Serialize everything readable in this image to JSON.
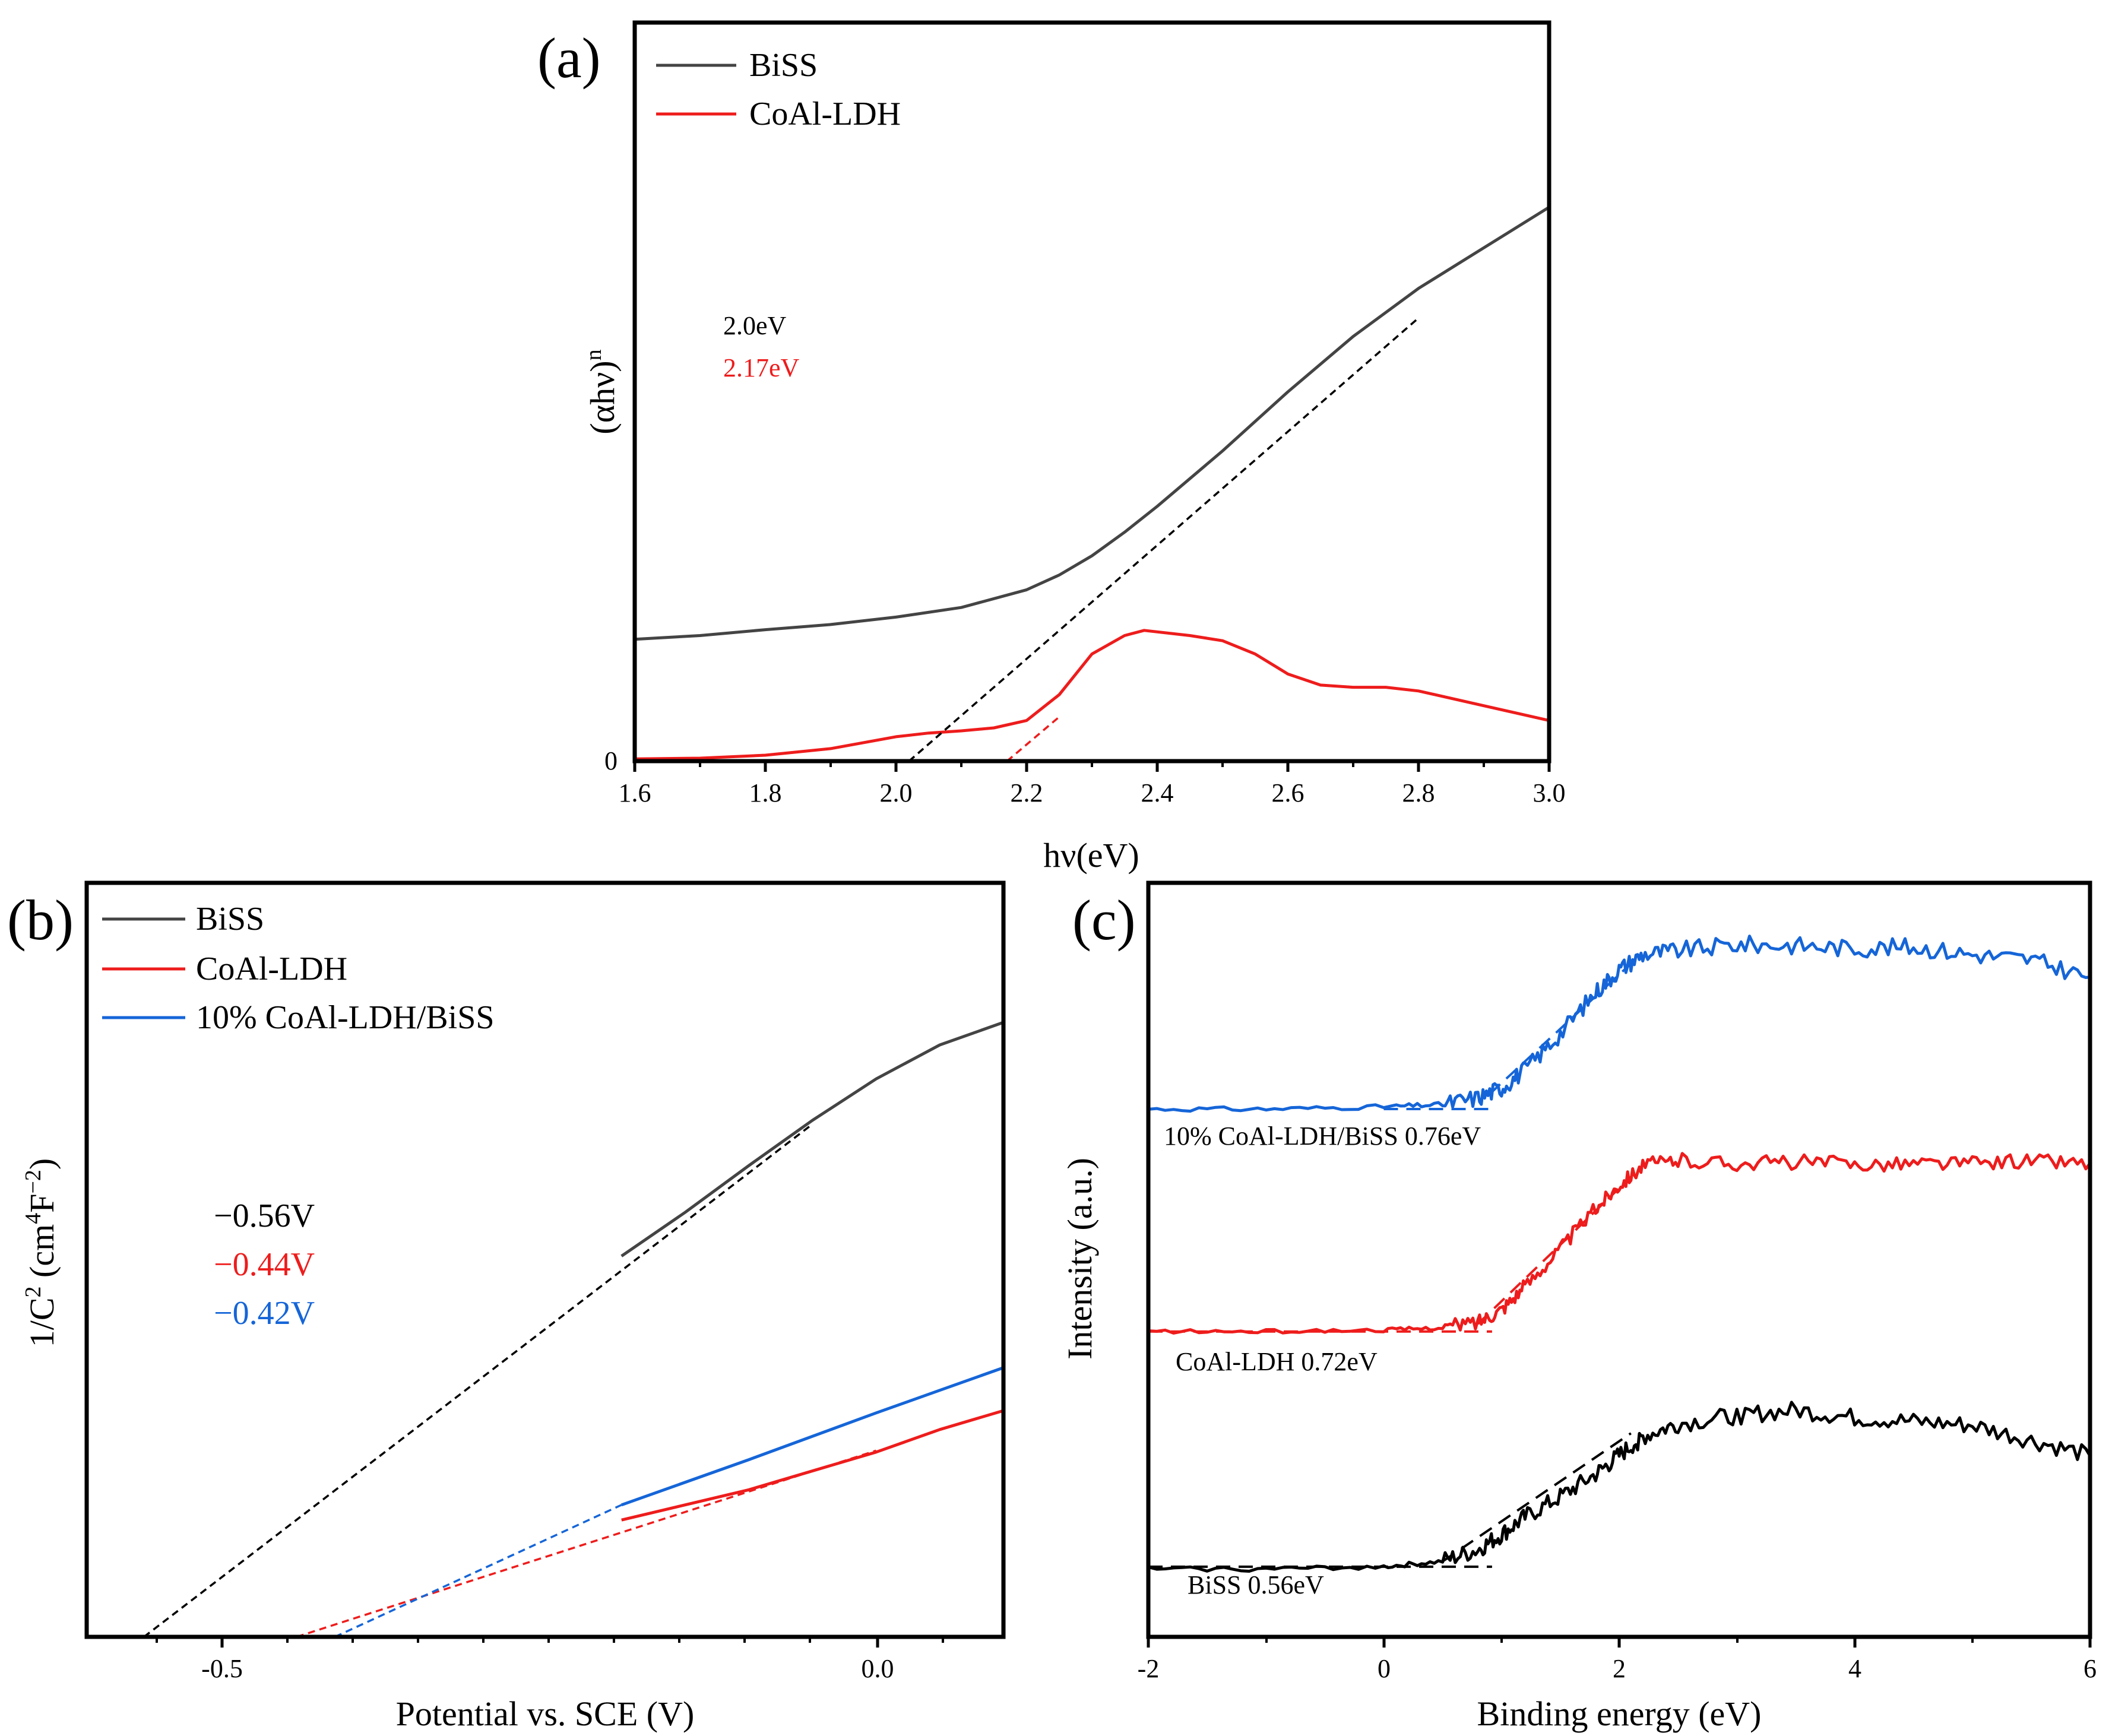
{
  "chart_data": [
    {
      "panel": "(a)",
      "type": "line",
      "xlabel": "hν(eV)",
      "ylabel": "(αhν)",
      "ylabel_sup": "n",
      "xlim": [
        1.6,
        3.0
      ],
      "ylim": [
        0,
        1.0
      ],
      "xticks": [
        "1.6",
        "1.8",
        "2.0",
        "2.2",
        "2.4",
        "2.6",
        "2.8",
        "3.0"
      ],
      "yticks": [
        "0"
      ],
      "legend": [
        "BiSS",
        "CoAl-LDH"
      ],
      "legend_position": "top-left",
      "annotations": [
        {
          "text": "2.0eV",
          "color": "#000000"
        },
        {
          "text": "2.17eV",
          "color": "#ee1c1c"
        }
      ],
      "series": [
        {
          "name": "BiSS",
          "color": "#444444",
          "x": [
            1.6,
            1.7,
            1.8,
            1.9,
            2.0,
            2.1,
            2.2,
            2.25,
            2.3,
            2.35,
            2.4,
            2.5,
            2.6,
            2.7,
            2.8,
            2.9,
            3.0
          ],
          "y": [
            0.165,
            0.17,
            0.178,
            0.185,
            0.195,
            0.208,
            0.232,
            0.252,
            0.278,
            0.31,
            0.345,
            0.42,
            0.5,
            0.575,
            0.64,
            0.695,
            0.75
          ]
        },
        {
          "name": "CoAl-LDH",
          "color": "#ee1c1c",
          "x": [
            1.6,
            1.7,
            1.8,
            1.9,
            1.95,
            2.0,
            2.05,
            2.1,
            2.15,
            2.2,
            2.25,
            2.3,
            2.35,
            2.38,
            2.45,
            2.5,
            2.55,
            2.6,
            2.65,
            2.7,
            2.75,
            2.8,
            2.9,
            3.0
          ],
          "y": [
            0.003,
            0.004,
            0.008,
            0.017,
            0.025,
            0.033,
            0.038,
            0.041,
            0.045,
            0.055,
            0.09,
            0.145,
            0.17,
            0.177,
            0.17,
            0.163,
            0.145,
            0.118,
            0.103,
            0.1,
            0.1,
            0.095,
            0.075,
            0.055
          ]
        }
      ],
      "fits": [
        {
          "color": "#000000",
          "x": [
            2.02,
            2.8
          ],
          "y": [
            0,
            0.6
          ]
        },
        {
          "color": "#ee1c1c",
          "x": [
            2.17,
            2.25
          ],
          "y": [
            0,
            0.06
          ]
        }
      ]
    },
    {
      "panel": "(b)",
      "type": "line",
      "xlabel": "Potential vs. SCE (V)",
      "ylabel": "1/C",
      "ylabel_sup1": "2",
      "ylabel_mid": " (cm",
      "ylabel_sup2": "4",
      "ylabel_tail": "F",
      "ylabel_sup3": "−2",
      "ylabel_close": ")",
      "xlim": [
        -0.62,
        0.1
      ],
      "ylim": [
        0,
        1.0
      ],
      "xticks": [
        "-0.5",
        "0.0"
      ],
      "legend": [
        "BiSS",
        "CoAl-LDH",
        "10% CoAl-LDH/BiSS"
      ],
      "legend_position": "top-left",
      "annotations": [
        {
          "text": "−0.56V",
          "color": "#000000"
        },
        {
          "text": "−0.44V",
          "color": "#ee1c1c"
        },
        {
          "text": "−0.42V",
          "color": "#1565d8"
        }
      ],
      "series": [
        {
          "name": "BiSS",
          "color": "#444444",
          "x": [
            -0.2,
            -0.15,
            -0.1,
            -0.05,
            0.0,
            0.05,
            0.1
          ],
          "y": [
            0.505,
            0.563,
            0.625,
            0.685,
            0.74,
            0.785,
            0.815
          ]
        },
        {
          "name": "CoAl-LDH",
          "color": "#ee1c1c",
          "x": [
            -0.2,
            -0.1,
            0.0,
            0.05,
            0.1
          ],
          "y": [
            0.155,
            0.195,
            0.245,
            0.275,
            0.3
          ]
        },
        {
          "name": "10% CoAl-LDH/BiSS",
          "color": "#1565d8",
          "x": [
            -0.2,
            -0.1,
            0.0,
            0.05,
            0.1
          ],
          "y": [
            0.175,
            0.235,
            0.297,
            0.327,
            0.357
          ]
        }
      ],
      "fits": [
        {
          "color": "#000000",
          "x": [
            -0.575,
            -0.05
          ],
          "y": [
            0,
            0.68
          ]
        },
        {
          "color": "#ee1c1c",
          "x": [
            -0.455,
            0.0
          ],
          "y": [
            0,
            0.247
          ]
        },
        {
          "color": "#1565d8",
          "x": [
            -0.425,
            -0.2
          ],
          "y": [
            0,
            0.175
          ]
        }
      ]
    },
    {
      "panel": "(c)",
      "type": "line",
      "xlabel": "Binding energy (eV)",
      "ylabel": "Intensity (a.u.)",
      "xlim": [
        -2,
        6
      ],
      "ylim": [
        0,
        1.0
      ],
      "xticks": [
        "-2",
        "0",
        "2",
        "4",
        "6"
      ],
      "annotations": [
        {
          "text": "10% CoAl-LDH/BiSS  0.76eV",
          "color": "#000000"
        },
        {
          "text": "CoAl-LDH  0.72eV",
          "color": "#000000"
        },
        {
          "text": "BiSS  0.56eV",
          "color": "#000000"
        }
      ],
      "series": [
        {
          "name": "",
          "color": "#1565d8",
          "noise": 0.012,
          "x": [
            -2,
            -1,
            0,
            0.5,
            0.8,
            1.0,
            1.2,
            1.5,
            1.8,
            2.0,
            2.2,
            2.5,
            3.0,
            3.5,
            4.0,
            4.5,
            5.0,
            5.5,
            6.0
          ],
          "y": [
            0.7,
            0.7,
            0.703,
            0.706,
            0.715,
            0.728,
            0.752,
            0.8,
            0.855,
            0.885,
            0.905,
            0.91,
            0.918,
            0.917,
            0.913,
            0.915,
            0.905,
            0.898,
            0.875
          ]
        },
        {
          "name": "",
          "color": "#ee1c1c",
          "noise": 0.01,
          "x": [
            -2,
            -1,
            0,
            0.5,
            0.8,
            1.0,
            1.2,
            1.5,
            1.8,
            2.0,
            2.2,
            2.5,
            3.0,
            3.5,
            4.0,
            4.5,
            5.0,
            5.5,
            6.0
          ],
          "y": [
            0.405,
            0.405,
            0.407,
            0.41,
            0.418,
            0.435,
            0.465,
            0.515,
            0.568,
            0.6,
            0.625,
            0.632,
            0.628,
            0.63,
            0.627,
            0.628,
            0.628,
            0.632,
            0.628
          ]
        },
        {
          "name": "",
          "color": "#000000",
          "noise": 0.012,
          "x": [
            -2,
            -1,
            0,
            0.5,
            0.8,
            1.0,
            1.2,
            1.5,
            1.8,
            2.0,
            2.2,
            2.5,
            3.0,
            3.5,
            4.0,
            4.5,
            5.0,
            5.5,
            6.0
          ],
          "y": [
            0.09,
            0.09,
            0.093,
            0.1,
            0.115,
            0.135,
            0.158,
            0.185,
            0.215,
            0.24,
            0.265,
            0.282,
            0.293,
            0.3,
            0.29,
            0.285,
            0.28,
            0.26,
            0.24
          ]
        }
      ],
      "fits": [
        {
          "color": "#1565d8",
          "x": [
            0.9,
            2.15
          ],
          "y": [
            0.72,
            0.9
          ]
        },
        {
          "color": "#1565d8",
          "x": [
            0.0,
            0.9
          ],
          "y": [
            0.7,
            0.7
          ]
        },
        {
          "color": "#ee1c1c",
          "x": [
            0.8,
            2.1
          ],
          "y": [
            0.415,
            0.61
          ]
        },
        {
          "color": "#ee1c1c",
          "x": [
            -2,
            0.92
          ],
          "y": [
            0.405,
            0.405
          ]
        },
        {
          "color": "#000000",
          "x": [
            0.5,
            2.1
          ],
          "y": [
            0.1,
            0.27
          ]
        },
        {
          "color": "#000000",
          "x": [
            -2,
            0.92
          ],
          "y": [
            0.093,
            0.093
          ]
        }
      ]
    }
  ]
}
